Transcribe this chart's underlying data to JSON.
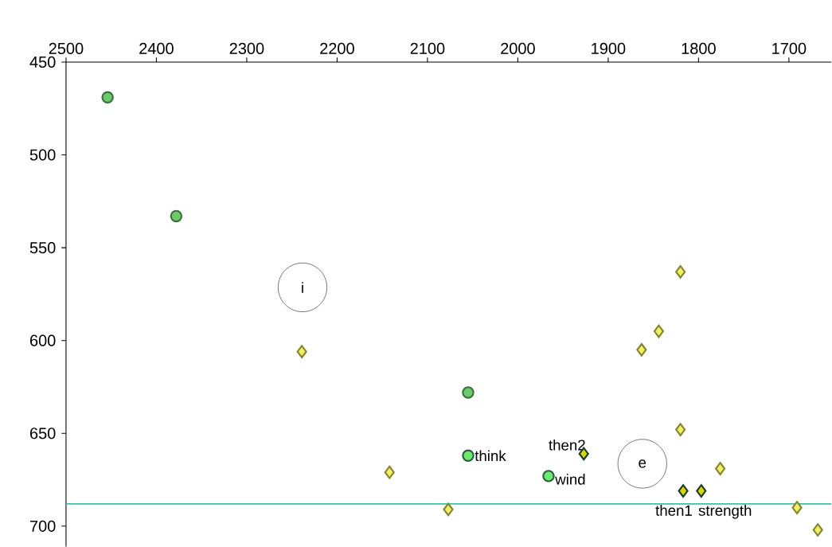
{
  "chart_data": {
    "type": "scatter",
    "xlim": [
      2500,
      1653
    ],
    "ylim": [
      711,
      450
    ],
    "xticks": [
      2500,
      2400,
      2300,
      2200,
      2100,
      2000,
      1900,
      1800,
      1700
    ],
    "yticks": [
      450,
      500,
      550,
      600,
      650,
      700
    ],
    "grid": false,
    "series": [
      {
        "color": "#6cc96c",
        "marker": "circle",
        "x": [
          2454,
          2378,
          2055
        ],
        "values": [
          469,
          533,
          628
        ]
      },
      {
        "color": "#2f5a45",
        "marker": "circle",
        "x": [
          2055,
          1966
        ],
        "values": [
          662,
          673
        ]
      },
      {
        "color": "#f0f060",
        "marker": "diamond",
        "x": [
          2239,
          2142,
          2077,
          1820,
          1844,
          1863,
          1820,
          1776,
          1691,
          1668
        ],
        "values": [
          606,
          671,
          691,
          563,
          595,
          605,
          648,
          669,
          690,
          702
        ]
      },
      {
        "color": "#1f3a2a",
        "marker": "diamond",
        "x": [
          1927,
          1817,
          1797
        ],
        "values": [
          661,
          681,
          681
        ]
      }
    ],
    "ref_lines": [
      {
        "axis": "y",
        "value": 688,
        "color": "#3cc0a0"
      }
    ],
    "annotations": [
      {
        "text": "think",
        "x": 2055,
        "y": 662
      },
      {
        "text": "wind",
        "x": 1966,
        "y": 673
      },
      {
        "text": "then2",
        "x": 1927,
        "y": 661
      },
      {
        "text": "then1",
        "x": 1817,
        "y": 681
      },
      {
        "text": "strength",
        "x": 1797,
        "y": 681
      },
      "i",
      "e"
    ]
  }
}
